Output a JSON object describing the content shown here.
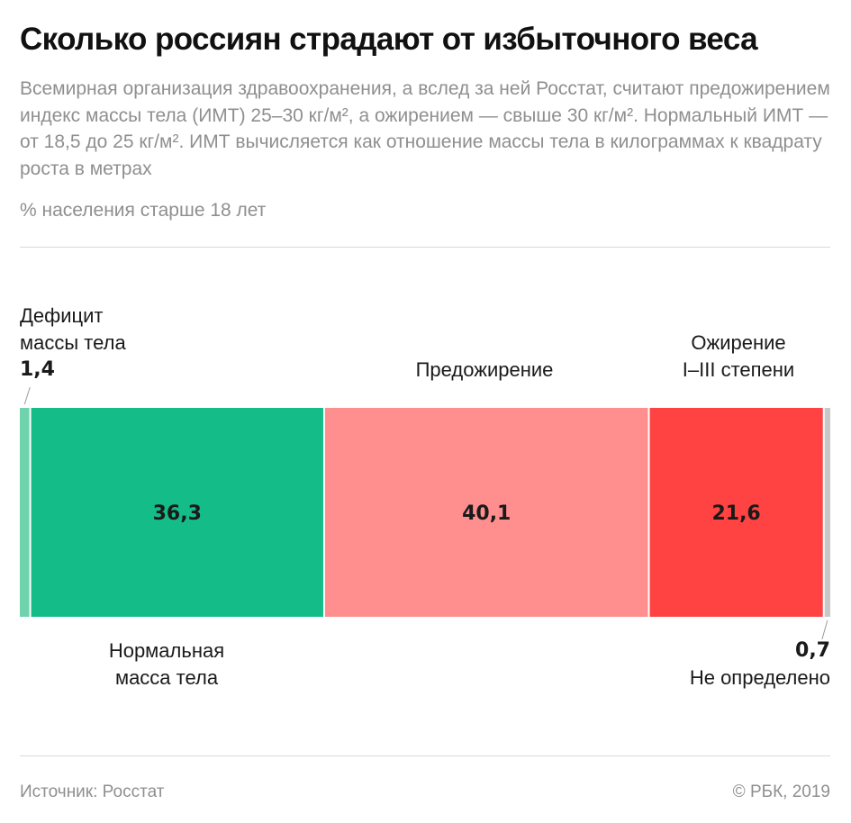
{
  "header": {
    "title": "Сколько россиян страдают от избыточного веса",
    "subtitle": "Всемирная организация здравоохранения, а вслед за ней Росстат, считают предожирением индекс массы тела (ИМТ) 25–30 кг/м², а ожирением — свыше 30 кг/м². Нормальный ИМТ — от 18,5 до 25  кг/м². ИМТ вычисляется как отношение массы тела в килограммах к квадрату роста в метрах",
    "unit_note": "% населения старше 18 лет"
  },
  "chart_data": {
    "type": "bar",
    "orientation": "horizontal-stacked",
    "title": "Сколько россиян страдают от избыточного веса",
    "unit": "% населения старше 18 лет",
    "segments": [
      {
        "name": "Дефицит массы тела",
        "value": 1.4,
        "value_label": "1,4",
        "color": "#6fd4ad"
      },
      {
        "name": "Нормальная масса тела",
        "value": 36.3,
        "value_label": "36,3",
        "color": "#14bc88"
      },
      {
        "name": "Предожирение",
        "value": 40.1,
        "value_label": "40,1",
        "color": "#ff8e8e"
      },
      {
        "name": "Ожирение I–III степени",
        "value": 21.6,
        "value_label": "21,6",
        "color": "#ff4343"
      },
      {
        "name": "Не определено",
        "value": 0.7,
        "value_label": "0,7",
        "color": "#c8c8c8"
      }
    ],
    "labels": {
      "deficit_line1": "Дефицит",
      "deficit_line2": "массы тела",
      "normal_line1": "Нормальная",
      "normal_line2": "масса тела",
      "preobesity": "Предожирение",
      "obesity_line1": "Ожирение",
      "obesity_line2": "I–III степени",
      "undefined": "Не определено"
    }
  },
  "footer": {
    "source": "Источник: Росстат",
    "copyright": "© РБК, 2019"
  }
}
